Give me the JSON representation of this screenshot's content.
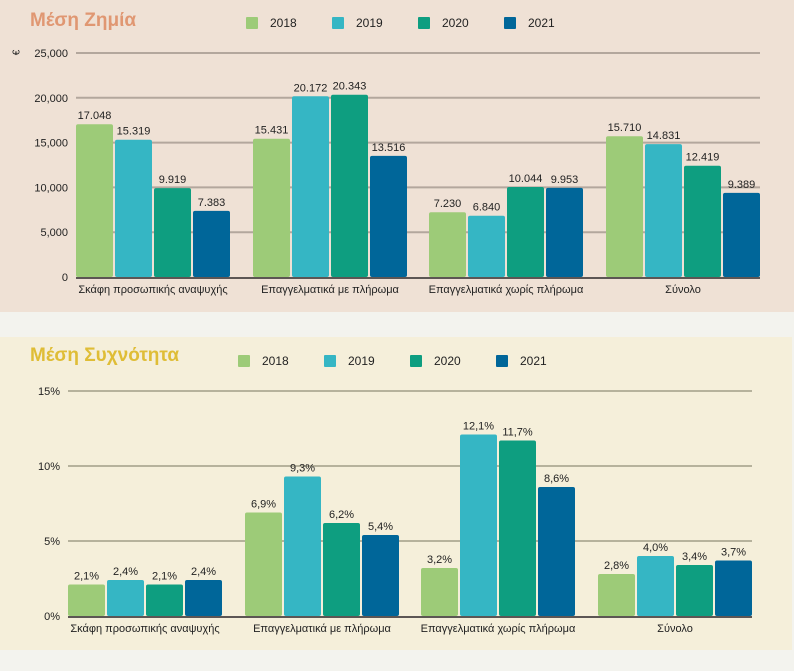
{
  "colors": {
    "2018": "#9dcb78",
    "2019": "#35b6c4",
    "2020": "#0e9e80",
    "2021": "#006699"
  },
  "chart_data": [
    {
      "type": "bar",
      "title": "Μέση Ζημία",
      "ylabel": "€",
      "xlabel": "",
      "ylim": [
        0,
        25000
      ],
      "yticks": [
        0,
        5000,
        10000,
        15000,
        20000,
        25000
      ],
      "ytick_labels": [
        "0",
        "5,000",
        "10,000",
        "15,000",
        "20,000",
        "25,000"
      ],
      "grid": true,
      "legend": "top",
      "categories": [
        "Σκάφη προσωπικής αναψυχής",
        "Επαγγελματικά  με  πλήρωμα",
        "Επαγγελματικά χωρίς πλήρωμα",
        "Σύνολο"
      ],
      "series": [
        {
          "name": "2018",
          "values": [
            17048,
            15431,
            7230,
            15710
          ],
          "labels": [
            "17.048",
            "15.431",
            "7.230",
            "15.710"
          ]
        },
        {
          "name": "2019",
          "values": [
            15319,
            20172,
            6840,
            14831
          ],
          "labels": [
            "15.319",
            "20.172",
            "6.840",
            "14.831"
          ]
        },
        {
          "name": "2020",
          "values": [
            9919,
            20343,
            10044,
            12419
          ],
          "labels": [
            "9.919",
            "20.343",
            "10.044",
            "12.419"
          ]
        },
        {
          "name": "2021",
          "values": [
            7383,
            13516,
            9953,
            9389
          ],
          "labels": [
            "7.383",
            "13.516",
            "9.953",
            "9.389"
          ]
        }
      ]
    },
    {
      "type": "bar",
      "title": "Μέση Συχνότητα",
      "ylabel": "",
      "xlabel": "",
      "ylim": [
        0,
        15
      ],
      "yticks": [
        0,
        5,
        10,
        15
      ],
      "ytick_labels": [
        "0%",
        "5%",
        "10%",
        "15%"
      ],
      "grid": true,
      "legend": "top",
      "categories": [
        "Σκάφη προσωπικής αναψυχής",
        "Επαγγελματικά με πλήρωμα",
        "Επαγγελματικά χωρίς πλήρωμα",
        "Σύνολο"
      ],
      "series": [
        {
          "name": "2018",
          "values": [
            2.1,
            6.9,
            3.2,
            2.8
          ],
          "labels": [
            "2,1%",
            "6,9%",
            "3,2%",
            "2,8%"
          ]
        },
        {
          "name": "2019",
          "values": [
            2.4,
            9.3,
            12.1,
            4.0
          ],
          "labels": [
            "2,4%",
            "9,3%",
            "12,1%",
            "4,0%"
          ]
        },
        {
          "name": "2020",
          "values": [
            2.1,
            6.2,
            11.7,
            3.4
          ],
          "labels": [
            "2,1%",
            "6,2%",
            "11,7%",
            "3,4%"
          ]
        },
        {
          "name": "2021",
          "values": [
            2.4,
            5.4,
            8.6,
            3.7
          ],
          "labels": [
            "2,4%",
            "5,4%",
            "8,6%",
            "3,7%"
          ]
        }
      ]
    }
  ]
}
